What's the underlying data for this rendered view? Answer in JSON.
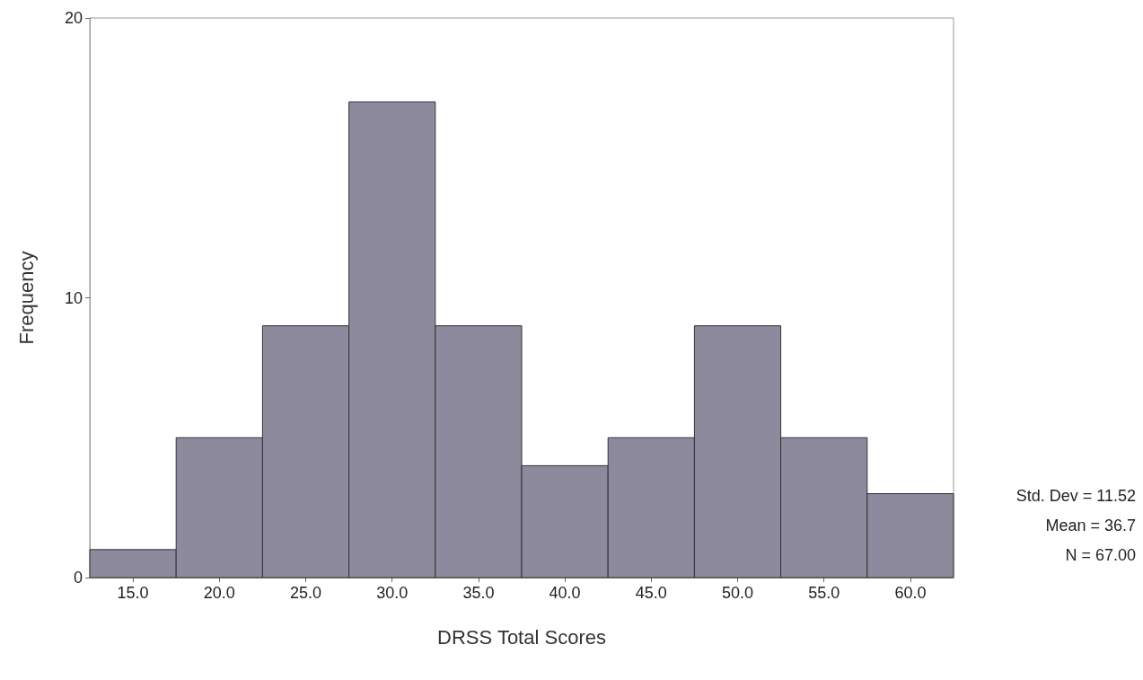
{
  "chart_data": {
    "type": "histogram",
    "xlabel": "DRSS Total Scores",
    "ylabel": "Frequency",
    "bins": [
      12.5,
      17.5,
      22.5,
      27.5,
      32.5,
      37.5,
      42.5,
      47.5,
      52.5,
      57.5,
      62.5
    ],
    "values": [
      1,
      5,
      9,
      17,
      9,
      4,
      5,
      9,
      5,
      3
    ],
    "color": "#8c8a9c",
    "xlim": [
      12.5,
      62.5
    ],
    "xticks": [
      {
        "value": 15,
        "label": "15.0"
      },
      {
        "value": 20,
        "label": "20.0"
      },
      {
        "value": 25,
        "label": "25.0"
      },
      {
        "value": 30,
        "label": "30.0"
      },
      {
        "value": 35,
        "label": "35.0"
      },
      {
        "value": 40,
        "label": "40.0"
      },
      {
        "value": 45,
        "label": "45.0"
      },
      {
        "value": 50,
        "label": "50.0"
      },
      {
        "value": 55,
        "label": "55.0"
      },
      {
        "value": 60,
        "label": "60.0"
      }
    ],
    "ylim": [
      0,
      20
    ],
    "yticks": [
      0,
      10,
      20
    ],
    "grid": false,
    "annotations": [
      "Std. Dev = 11.52",
      "Mean = 36.7",
      "N = 67.00"
    ]
  }
}
